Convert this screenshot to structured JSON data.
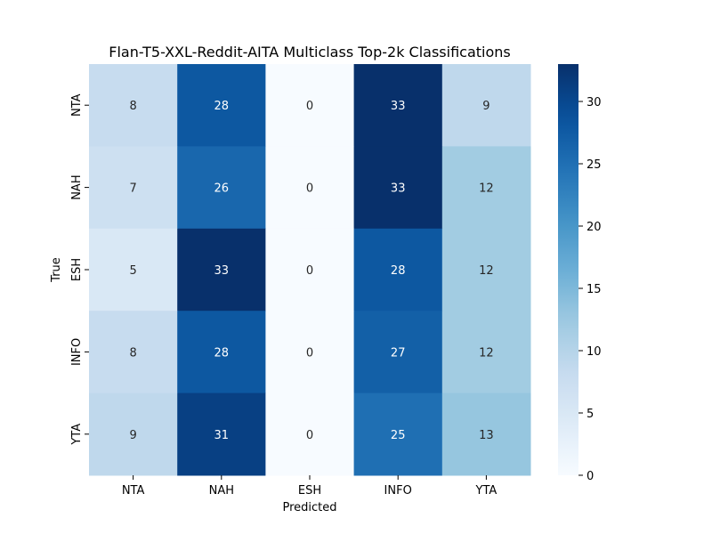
{
  "chart_data": {
    "type": "heatmap",
    "title": "Flan-T5-XXL-Reddit-AITA Multiclass Top-2k Classifications",
    "xlabel": "Predicted",
    "ylabel": "True",
    "x_categories": [
      "NTA",
      "NAH",
      "ESH",
      "INFO",
      "YTA"
    ],
    "y_categories": [
      "NTA",
      "NAH",
      "ESH",
      "INFO",
      "YTA"
    ],
    "values": [
      [
        8,
        28,
        0,
        33,
        9
      ],
      [
        7,
        26,
        0,
        33,
        12
      ],
      [
        5,
        33,
        0,
        28,
        12
      ],
      [
        8,
        28,
        0,
        27,
        12
      ],
      [
        9,
        31,
        0,
        25,
        13
      ]
    ],
    "colormap": "Blues",
    "vmin": 0,
    "vmax": 33,
    "colorbar_ticks": [
      0,
      5,
      10,
      15,
      20,
      25,
      30
    ]
  }
}
